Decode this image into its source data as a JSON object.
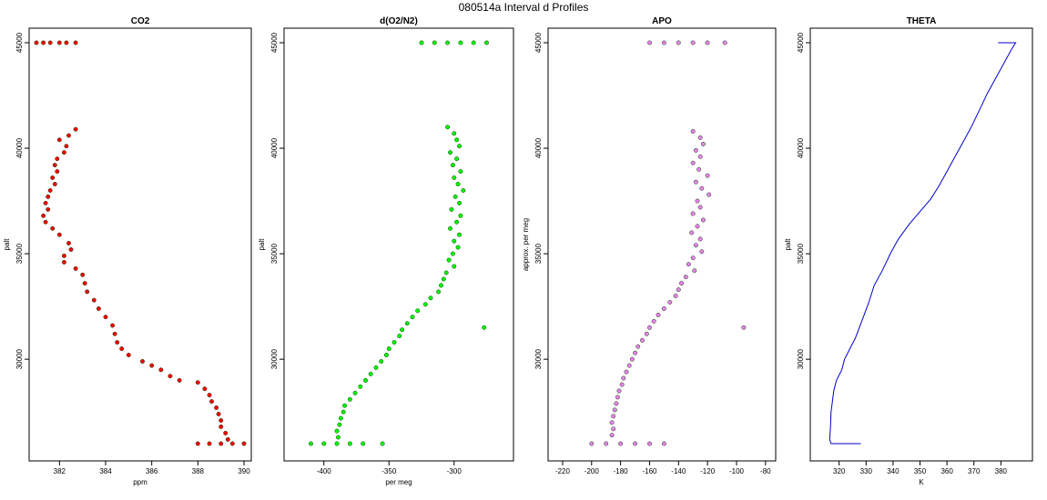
{
  "figure": {
    "title": "080514a   Interval d Profiles",
    "colors": {
      "CO2": "#ff0000",
      "O2N2": "#00ff00",
      "APO": "#ee82ee",
      "THETA": "#0000cc",
      "edge": "#003300"
    }
  },
  "chart_data": [
    {
      "id": "co2",
      "type": "scatter",
      "title": "CO2",
      "xlabel": "ppm",
      "ylabel": "palt",
      "xlim": [
        381,
        390
      ],
      "ylim": [
        26000,
        45000
      ],
      "xticks": [
        382,
        384,
        386,
        388,
        390
      ],
      "yticks": [
        30000,
        35000,
        40000,
        45000
      ],
      "color": "#ff0000",
      "points": [
        [
          381.0,
          45000
        ],
        [
          381.3,
          45000
        ],
        [
          381.6,
          45000
        ],
        [
          382.0,
          45000
        ],
        [
          382.3,
          45000
        ],
        [
          382.7,
          45000
        ],
        [
          382.7,
          40900
        ],
        [
          382.4,
          40600
        ],
        [
          382.0,
          40400
        ],
        [
          382.3,
          40100
        ],
        [
          382.2,
          39800
        ],
        [
          381.9,
          39500
        ],
        [
          381.8,
          39200
        ],
        [
          381.9,
          38900
        ],
        [
          381.7,
          38600
        ],
        [
          381.8,
          38300
        ],
        [
          381.6,
          38000
        ],
        [
          381.5,
          37700
        ],
        [
          381.4,
          37400
        ],
        [
          381.5,
          37100
        ],
        [
          381.3,
          36800
        ],
        [
          381.4,
          36500
        ],
        [
          381.7,
          36200
        ],
        [
          382.0,
          35900
        ],
        [
          382.4,
          35500
        ],
        [
          382.5,
          35200
        ],
        [
          382.2,
          34900
        ],
        [
          382.2,
          34600
        ],
        [
          382.7,
          34300
        ],
        [
          383.0,
          34000
        ],
        [
          383.1,
          33600
        ],
        [
          383.2,
          33200
        ],
        [
          383.5,
          32800
        ],
        [
          383.7,
          32400
        ],
        [
          384.0,
          32000
        ],
        [
          384.3,
          31600
        ],
        [
          384.4,
          31200
        ],
        [
          384.5,
          30800
        ],
        [
          384.7,
          30500
        ],
        [
          385.0,
          30200
        ],
        [
          385.6,
          29900
        ],
        [
          386.0,
          29700
        ],
        [
          386.4,
          29500
        ],
        [
          386.8,
          29200
        ],
        [
          387.2,
          29000
        ],
        [
          388.0,
          28900
        ],
        [
          388.3,
          28600
        ],
        [
          388.5,
          28300
        ],
        [
          388.6,
          28000
        ],
        [
          388.8,
          27700
        ],
        [
          388.9,
          27400
        ],
        [
          389.0,
          27100
        ],
        [
          389.0,
          26800
        ],
        [
          389.2,
          26500
        ],
        [
          389.3,
          26200
        ],
        [
          388.0,
          26000
        ],
        [
          388.5,
          26000
        ],
        [
          389.0,
          26000
        ],
        [
          389.5,
          26000
        ],
        [
          390.0,
          26000
        ]
      ]
    },
    {
      "id": "o2n2",
      "type": "scatter",
      "title": "d(O2/N2)",
      "xlabel": "per meg",
      "ylabel": "palt",
      "xlim": [
        -425,
        -260
      ],
      "ylim": [
        26000,
        45000
      ],
      "xticks": [
        -400,
        -350,
        -300
      ],
      "yticks": [
        30000,
        35000,
        40000,
        45000
      ],
      "color": "#00ff00",
      "points": [
        [
          -325,
          45000
        ],
        [
          -315,
          45000
        ],
        [
          -305,
          45000
        ],
        [
          -295,
          45000
        ],
        [
          -285,
          45000
        ],
        [
          -275,
          45000
        ],
        [
          -305,
          41000
        ],
        [
          -300,
          40700
        ],
        [
          -298,
          40400
        ],
        [
          -296,
          40100
        ],
        [
          -303,
          39800
        ],
        [
          -298,
          39500
        ],
        [
          -301,
          39200
        ],
        [
          -295,
          38900
        ],
        [
          -300,
          38600
        ],
        [
          -297,
          38300
        ],
        [
          -293,
          38000
        ],
        [
          -299,
          37700
        ],
        [
          -296,
          37400
        ],
        [
          -302,
          37100
        ],
        [
          -295,
          36800
        ],
        [
          -298,
          36500
        ],
        [
          -303,
          36200
        ],
        [
          -296,
          35900
        ],
        [
          -300,
          35600
        ],
        [
          -297,
          35300
        ],
        [
          -301,
          35000
        ],
        [
          -304,
          34700
        ],
        [
          -300,
          34400
        ],
        [
          -306,
          34100
        ],
        [
          -308,
          33800
        ],
        [
          -310,
          33500
        ],
        [
          -312,
          33200
        ],
        [
          -318,
          32900
        ],
        [
          -322,
          32600
        ],
        [
          -328,
          32300
        ],
        [
          -332,
          32000
        ],
        [
          -336,
          31700
        ],
        [
          -340,
          31400
        ],
        [
          -342,
          31100
        ],
        [
          -346,
          30800
        ],
        [
          -350,
          30500
        ],
        [
          -352,
          30200
        ],
        [
          -356,
          29900
        ],
        [
          -360,
          29600
        ],
        [
          -364,
          29300
        ],
        [
          -368,
          29000
        ],
        [
          -372,
          28700
        ],
        [
          -376,
          28400
        ],
        [
          -380,
          28100
        ],
        [
          -384,
          27800
        ],
        [
          -385,
          27500
        ],
        [
          -387,
          27200
        ],
        [
          -388,
          26900
        ],
        [
          -390,
          26600
        ],
        [
          -389,
          26300
        ],
        [
          -410,
          26000
        ],
        [
          -400,
          26000
        ],
        [
          -390,
          26000
        ],
        [
          -380,
          26000
        ],
        [
          -370,
          26000
        ],
        [
          -355,
          26000
        ],
        [
          -277,
          31500
        ]
      ]
    },
    {
      "id": "apo",
      "type": "scatter",
      "title": "APO",
      "xlabel": "",
      "ylabel": "approx. per meg",
      "xlim": [
        -225,
        -78
      ],
      "ylim": [
        26000,
        45000
      ],
      "xticks": [
        -220,
        -200,
        -180,
        -160,
        -140,
        -120,
        -100,
        -80
      ],
      "yticks": [
        30000,
        35000,
        40000,
        45000
      ],
      "color": "#ee82ee",
      "points": [
        [
          -160,
          45000
        ],
        [
          -150,
          45000
        ],
        [
          -140,
          45000
        ],
        [
          -130,
          45000
        ],
        [
          -120,
          45000
        ],
        [
          -108,
          45000
        ],
        [
          -130,
          40800
        ],
        [
          -125,
          40500
        ],
        [
          -123,
          40200
        ],
        [
          -128,
          39900
        ],
        [
          -125,
          39600
        ],
        [
          -130,
          39300
        ],
        [
          -126,
          39000
        ],
        [
          -120,
          38700
        ],
        [
          -128,
          38400
        ],
        [
          -124,
          38100
        ],
        [
          -119,
          37800
        ],
        [
          -127,
          37500
        ],
        [
          -125,
          37200
        ],
        [
          -130,
          36900
        ],
        [
          -123,
          36600
        ],
        [
          -127,
          36300
        ],
        [
          -131,
          36000
        ],
        [
          -125,
          35700
        ],
        [
          -128,
          35400
        ],
        [
          -124,
          35100
        ],
        [
          -130,
          34800
        ],
        [
          -133,
          34500
        ],
        [
          -129,
          34200
        ],
        [
          -135,
          33900
        ],
        [
          -138,
          33600
        ],
        [
          -140,
          33300
        ],
        [
          -142,
          33000
        ],
        [
          -146,
          32700
        ],
        [
          -150,
          32400
        ],
        [
          -154,
          32100
        ],
        [
          -157,
          31800
        ],
        [
          -160,
          31500
        ],
        [
          -162,
          31200
        ],
        [
          -165,
          30900
        ],
        [
          -168,
          30600
        ],
        [
          -170,
          30300
        ],
        [
          -172,
          30000
        ],
        [
          -174,
          29700
        ],
        [
          -176,
          29400
        ],
        [
          -178,
          29100
        ],
        [
          -179,
          28800
        ],
        [
          -181,
          28500
        ],
        [
          -182,
          28200
        ],
        [
          -183,
          27900
        ],
        [
          -184,
          27600
        ],
        [
          -185,
          27300
        ],
        [
          -186,
          27000
        ],
        [
          -185,
          26700
        ],
        [
          -186,
          26400
        ],
        [
          -200,
          26000
        ],
        [
          -190,
          26000
        ],
        [
          -180,
          26000
        ],
        [
          -170,
          26000
        ],
        [
          -160,
          26000
        ],
        [
          -150,
          26000
        ],
        [
          -95,
          31500
        ]
      ]
    },
    {
      "id": "theta",
      "type": "line",
      "title": "THETA",
      "xlabel": "K",
      "ylabel": "palt",
      "xlim": [
        312,
        389
      ],
      "ylim": [
        26000,
        45000
      ],
      "xticks": [
        320,
        330,
        340,
        350,
        360,
        370,
        380
      ],
      "yticks": [
        30000,
        35000,
        40000,
        45000
      ],
      "color": "#0000cc",
      "points": [
        [
          328,
          26000
        ],
        [
          320,
          26000
        ],
        [
          317,
          26000
        ],
        [
          316.5,
          26200
        ],
        [
          316.8,
          26800
        ],
        [
          317,
          27500
        ],
        [
          317.5,
          28000
        ],
        [
          318,
          28500
        ],
        [
          319,
          29000
        ],
        [
          321,
          29500
        ],
        [
          322,
          30000
        ],
        [
          324,
          30500
        ],
        [
          326,
          31000
        ],
        [
          327.5,
          31500
        ],
        [
          329,
          32000
        ],
        [
          331,
          32700
        ],
        [
          333,
          33500
        ],
        [
          336,
          34200
        ],
        [
          339,
          35000
        ],
        [
          342,
          35700
        ],
        [
          346,
          36400
        ],
        [
          350,
          37000
        ],
        [
          354,
          37600
        ],
        [
          357,
          38200
        ],
        [
          360,
          38900
        ],
        [
          363,
          39600
        ],
        [
          366,
          40300
        ],
        [
          369,
          41000
        ],
        [
          372,
          41800
        ],
        [
          375,
          42600
        ],
        [
          378,
          43300
        ],
        [
          381,
          44000
        ],
        [
          384,
          44700
        ],
        [
          385.5,
          45000
        ],
        [
          382,
          45000
        ],
        [
          379,
          45000
        ]
      ]
    }
  ]
}
